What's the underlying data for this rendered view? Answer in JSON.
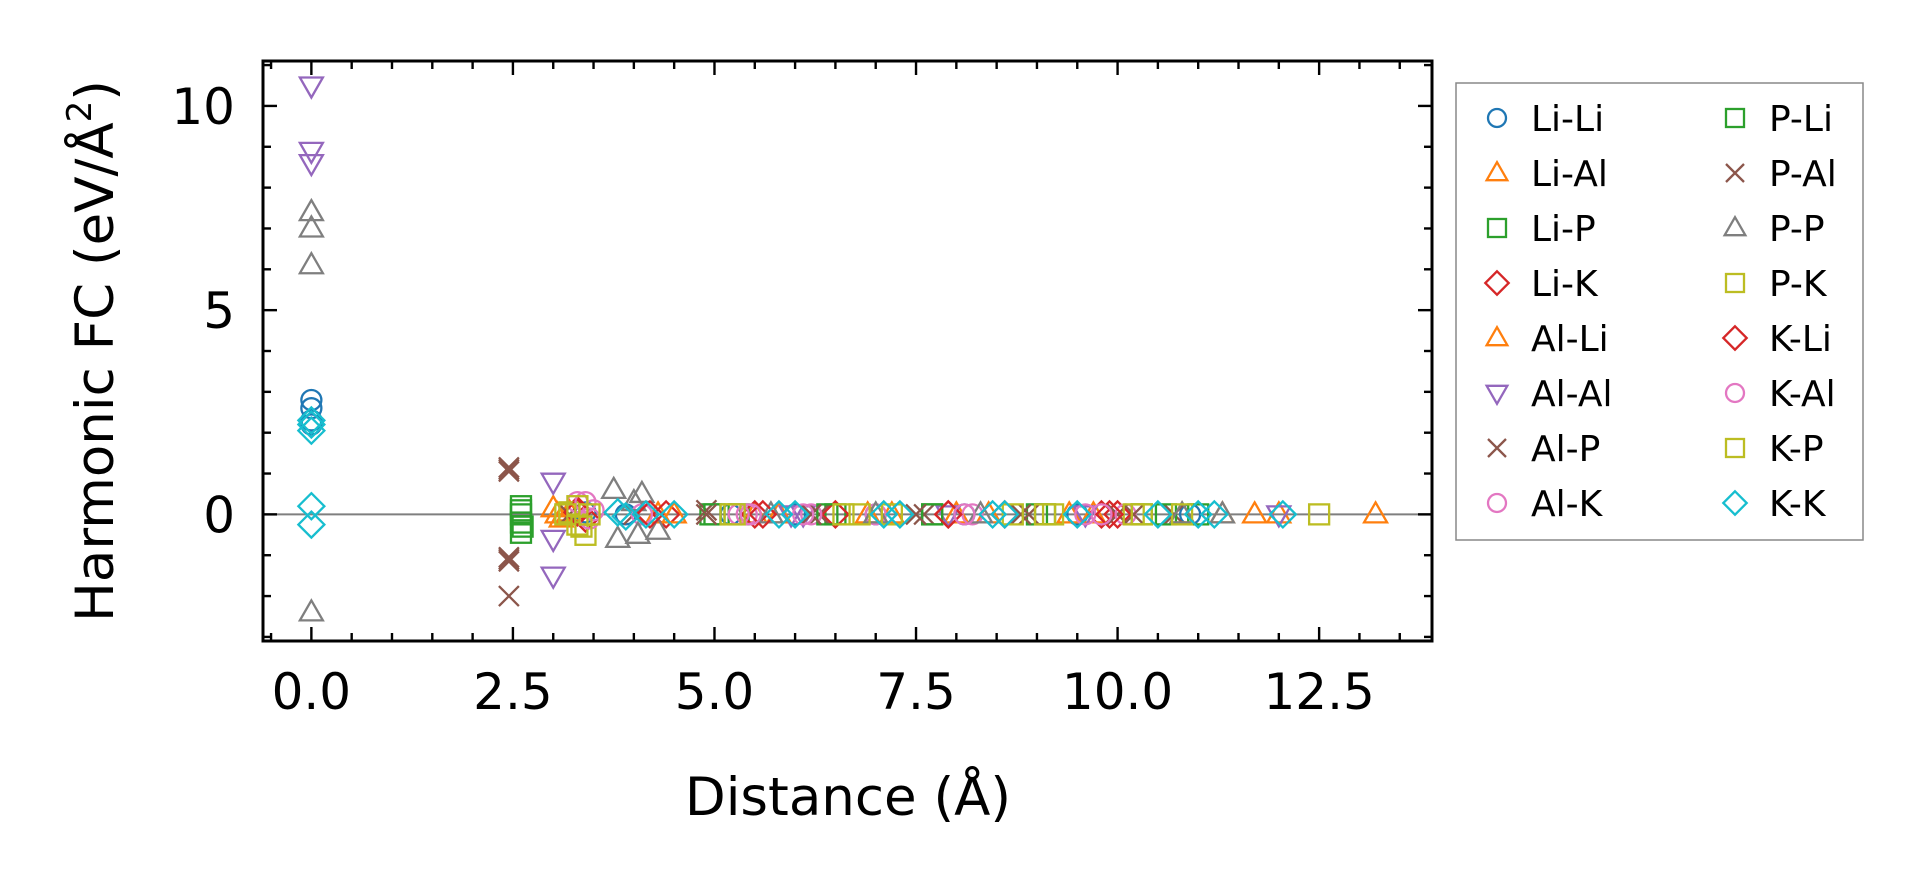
{
  "chart_data": {
    "type": "scatter",
    "xlabel": "Distance (Å)",
    "ylabel_main": "Harmonic FC (eV/Å",
    "ylabel_sup": "2",
    "ylabel_end": ")",
    "xlim": [
      -0.6,
      13.9
    ],
    "ylim": [
      -3.1,
      11.1
    ],
    "xticks": [
      0.0,
      2.5,
      5.0,
      7.5,
      10.0,
      12.5
    ],
    "xtick_labels": [
      "0.0",
      "2.5",
      "5.0",
      "7.5",
      "10.0",
      "12.5"
    ],
    "yticks": [
      0,
      5,
      10
    ],
    "ytick_labels": [
      "0",
      "5",
      "10"
    ],
    "zero_line": true,
    "legend_position": "outside-right",
    "series": [
      {
        "name": "Li-Li",
        "marker": "circle",
        "color": "#1f77b4",
        "points": [
          [
            0,
            2.8
          ],
          [
            0,
            2.6
          ],
          [
            0,
            2.3
          ],
          [
            0,
            2.2
          ],
          [
            3.4,
            0.05
          ],
          [
            3.9,
            0
          ],
          [
            5.2,
            0
          ],
          [
            6.0,
            0
          ],
          [
            7.0,
            0
          ],
          [
            8.1,
            0
          ],
          [
            9.5,
            0
          ],
          [
            10.9,
            0
          ]
        ]
      },
      {
        "name": "Li-Al",
        "marker": "triangle-up",
        "color": "#ff7f0e",
        "points": [
          [
            3.0,
            0.15
          ],
          [
            3.1,
            -0.1
          ],
          [
            4.3,
            0
          ],
          [
            5.5,
            0
          ],
          [
            6.9,
            0
          ],
          [
            8.0,
            0
          ],
          [
            9.4,
            0
          ],
          [
            10.8,
            0
          ],
          [
            11.7,
            0
          ],
          [
            13.2,
            0
          ]
        ]
      },
      {
        "name": "Li-P",
        "marker": "square",
        "color": "#2ca02c",
        "points": [
          [
            2.6,
            0.2
          ],
          [
            2.6,
            0
          ],
          [
            2.6,
            -0.2
          ],
          [
            2.6,
            -0.45
          ],
          [
            4.95,
            0
          ],
          [
            5.3,
            0
          ],
          [
            6.5,
            0
          ],
          [
            7.7,
            0
          ],
          [
            9.0,
            0
          ],
          [
            10.3,
            0
          ],
          [
            11.0,
            0
          ]
        ]
      },
      {
        "name": "Li-K",
        "marker": "diamond",
        "color": "#d62728",
        "points": [
          [
            3.3,
            0.1
          ],
          [
            3.4,
            -0.1
          ],
          [
            4.4,
            0
          ],
          [
            5.5,
            0
          ],
          [
            6.5,
            0
          ],
          [
            7.9,
            0
          ],
          [
            8.6,
            0
          ],
          [
            9.8,
            0
          ],
          [
            10.0,
            0
          ]
        ]
      },
      {
        "name": "Al-Li",
        "marker": "triangle-up",
        "color": "#ff7f0e",
        "points": [
          [
            3.05,
            0
          ],
          [
            3.2,
            0.05
          ],
          [
            4.5,
            0
          ],
          [
            5.8,
            0
          ],
          [
            7.2,
            0
          ],
          [
            8.4,
            0
          ],
          [
            9.7,
            0
          ],
          [
            11.3,
            0
          ],
          [
            12.0,
            0
          ]
        ]
      },
      {
        "name": "Al-Al",
        "marker": "triangle-down",
        "color": "#9467bd",
        "points": [
          [
            0,
            10.5
          ],
          [
            0,
            8.9
          ],
          [
            0,
            8.6
          ],
          [
            3.0,
            0.8
          ],
          [
            3.0,
            -0.6
          ],
          [
            3.0,
            -1.5
          ],
          [
            5.95,
            0
          ],
          [
            6.1,
            0
          ],
          [
            7.9,
            0
          ],
          [
            9.6,
            0
          ],
          [
            12.0,
            0
          ]
        ]
      },
      {
        "name": "Al-P",
        "marker": "cross",
        "color": "#8c564b",
        "points": [
          [
            2.45,
            1.15
          ],
          [
            2.45,
            1.05
          ],
          [
            2.45,
            -1.05
          ],
          [
            2.45,
            -1.15
          ],
          [
            2.45,
            -2.0
          ],
          [
            3.2,
            0
          ],
          [
            4.0,
            0
          ],
          [
            4.9,
            0.1
          ],
          [
            6.3,
            0
          ],
          [
            7.6,
            0
          ],
          [
            8.8,
            0
          ],
          [
            10.0,
            0
          ],
          [
            10.7,
            0
          ]
        ]
      },
      {
        "name": "Al-K",
        "marker": "circle",
        "color": "#e377c2",
        "points": [
          [
            3.3,
            0.3
          ],
          [
            3.5,
            0.1
          ],
          [
            4.1,
            0
          ],
          [
            5.4,
            0
          ],
          [
            6.2,
            0
          ],
          [
            7.0,
            0
          ],
          [
            8.2,
            0
          ],
          [
            9.6,
            0
          ],
          [
            10.1,
            0
          ]
        ]
      },
      {
        "name": "P-Li",
        "marker": "square",
        "color": "#2ca02c",
        "points": [
          [
            2.6,
            0.1
          ],
          [
            2.62,
            -0.3
          ],
          [
            5.0,
            0
          ],
          [
            6.4,
            0
          ],
          [
            7.7,
            0
          ],
          [
            9.1,
            0
          ],
          [
            10.6,
            0
          ]
        ]
      },
      {
        "name": "P-Al",
        "marker": "cross",
        "color": "#8c564b",
        "points": [
          [
            2.45,
            1.1
          ],
          [
            2.45,
            -1.1
          ],
          [
            4.9,
            0
          ],
          [
            6.2,
            0
          ],
          [
            7.5,
            0
          ],
          [
            8.9,
            0
          ],
          [
            10.2,
            0
          ]
        ]
      },
      {
        "name": "P-P",
        "marker": "triangle-up",
        "color": "#7f7f7f",
        "points": [
          [
            0,
            7.4
          ],
          [
            0,
            7.0
          ],
          [
            0,
            6.1
          ],
          [
            0,
            -2.4
          ],
          [
            3.75,
            0.6
          ],
          [
            3.8,
            -0.6
          ],
          [
            4.0,
            0.3
          ],
          [
            4.05,
            -0.5
          ],
          [
            4.1,
            0.5
          ],
          [
            4.3,
            -0.4
          ],
          [
            5.7,
            0
          ],
          [
            7.0,
            0
          ],
          [
            8.3,
            0
          ],
          [
            10.8,
            0
          ],
          [
            11.3,
            0
          ]
        ]
      },
      {
        "name": "P-K",
        "marker": "square",
        "color": "#bcbd22",
        "points": [
          [
            3.2,
            0.05
          ],
          [
            3.3,
            -0.25
          ],
          [
            3.4,
            -0.5
          ],
          [
            5.2,
            0
          ],
          [
            6.6,
            0
          ],
          [
            8.7,
            0
          ],
          [
            9.2,
            0
          ],
          [
            10.2,
            0
          ],
          [
            10.8,
            0
          ]
        ]
      },
      {
        "name": "K-Li",
        "marker": "diamond",
        "color": "#d62728",
        "points": [
          [
            3.3,
            0.05
          ],
          [
            4.2,
            0
          ],
          [
            5.6,
            0
          ],
          [
            7.9,
            0
          ],
          [
            9.9,
            0
          ]
        ]
      },
      {
        "name": "K-Al",
        "marker": "circle",
        "color": "#e377c2",
        "points": [
          [
            3.4,
            0.3
          ],
          [
            3.45,
            -0.1
          ],
          [
            5.3,
            0
          ],
          [
            5.45,
            0
          ],
          [
            6.1,
            0
          ],
          [
            8.1,
            0
          ],
          [
            9.8,
            0
          ]
        ]
      },
      {
        "name": "K-P",
        "marker": "square",
        "color": "#bcbd22",
        "points": [
          [
            3.15,
            0
          ],
          [
            3.3,
            0.2
          ],
          [
            3.35,
            -0.3
          ],
          [
            3.45,
            0
          ],
          [
            5.25,
            0
          ],
          [
            6.8,
            0
          ],
          [
            7.2,
            0
          ],
          [
            9.1,
            0
          ],
          [
            10.3,
            0
          ],
          [
            12.5,
            0
          ]
        ]
      },
      {
        "name": "K-K",
        "marker": "diamond",
        "color": "#17becf",
        "points": [
          [
            0,
            2.3
          ],
          [
            0,
            2.2
          ],
          [
            0,
            2.05
          ],
          [
            0,
            0.2
          ],
          [
            0,
            -0.25
          ],
          [
            3.8,
            0.05
          ],
          [
            3.9,
            -0.05
          ],
          [
            4.15,
            0
          ],
          [
            4.5,
            0
          ],
          [
            5.8,
            0
          ],
          [
            6.0,
            0
          ],
          [
            7.1,
            0
          ],
          [
            7.3,
            0
          ],
          [
            8.45,
            0
          ],
          [
            8.6,
            0
          ],
          [
            9.5,
            0
          ],
          [
            10.5,
            0
          ],
          [
            11.0,
            0
          ],
          [
            11.2,
            0
          ],
          [
            12.05,
            0
          ]
        ]
      }
    ]
  }
}
